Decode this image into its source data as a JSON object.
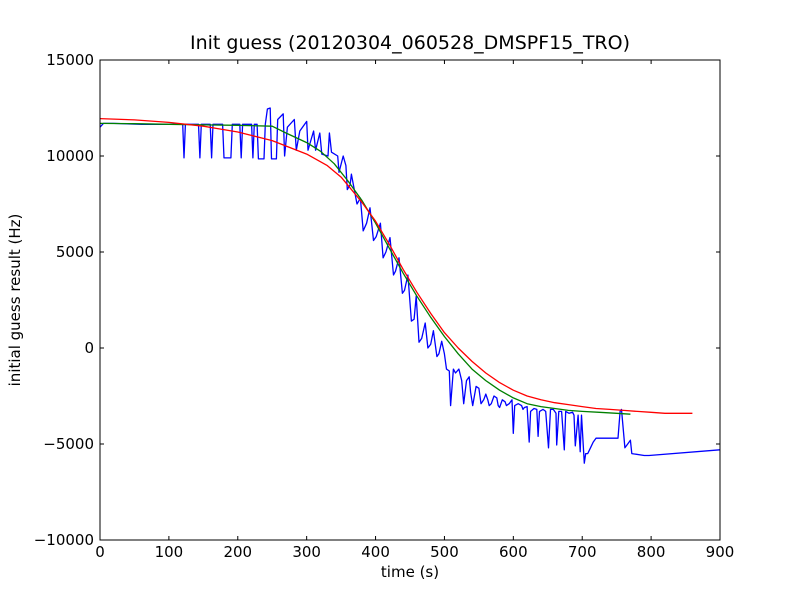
{
  "chart_data": {
    "type": "line",
    "title": "Init guess (20120304_060528_DMSPF15_TRO)",
    "xlabel": "time (s)",
    "ylabel": "initial guess result (Hz)",
    "xlim": [
      0,
      900
    ],
    "ylim": [
      -10000,
      15000
    ],
    "x_ticks": [
      0,
      100,
      200,
      300,
      400,
      500,
      600,
      700,
      800,
      900
    ],
    "y_ticks": [
      -10000,
      -5000,
      0,
      5000,
      10000,
      15000
    ],
    "grid": false,
    "legend": "none",
    "series": [
      {
        "color": "#0000ff",
        "points": [
          [
            0,
            11500
          ],
          [
            5,
            11700
          ],
          [
            20,
            11700
          ],
          [
            60,
            11650
          ],
          [
            100,
            11650
          ],
          [
            120,
            11650
          ],
          [
            122,
            9900
          ],
          [
            124,
            11650
          ],
          [
            143,
            11650
          ],
          [
            145,
            9900
          ],
          [
            147,
            11650
          ],
          [
            160,
            11650
          ],
          [
            162,
            9900
          ],
          [
            164,
            11650
          ],
          [
            178,
            11650
          ],
          [
            180,
            9900
          ],
          [
            190,
            9900
          ],
          [
            192,
            11650
          ],
          [
            203,
            11650
          ],
          [
            205,
            9900
          ],
          [
            207,
            11650
          ],
          [
            220,
            11650
          ],
          [
            222,
            9900
          ],
          [
            224,
            11650
          ],
          [
            228,
            11650
          ],
          [
            230,
            9850
          ],
          [
            238,
            9850
          ],
          [
            240,
            11650
          ],
          [
            243,
            12450
          ],
          [
            247,
            12500
          ],
          [
            249,
            9850
          ],
          [
            256,
            9850
          ],
          [
            258,
            11900
          ],
          [
            266,
            12200
          ],
          [
            268,
            10000
          ],
          [
            272,
            11500
          ],
          [
            282,
            11900
          ],
          [
            285,
            10300
          ],
          [
            290,
            11300
          ],
          [
            300,
            11800
          ],
          [
            302,
            10300
          ],
          [
            310,
            11300
          ],
          [
            313,
            10300
          ],
          [
            319,
            11200
          ],
          [
            322,
            10100
          ],
          [
            331,
            10000
          ],
          [
            333,
            11200
          ],
          [
            336,
            10200
          ],
          [
            345,
            10000
          ],
          [
            347,
            9150
          ],
          [
            353,
            10000
          ],
          [
            357,
            9500
          ],
          [
            359,
            8250
          ],
          [
            363,
            8500
          ],
          [
            365,
            9050
          ],
          [
            373,
            7500
          ],
          [
            378,
            7800
          ],
          [
            382,
            6100
          ],
          [
            387,
            6500
          ],
          [
            392,
            7300
          ],
          [
            397,
            5600
          ],
          [
            401,
            5800
          ],
          [
            407,
            6500
          ],
          [
            411,
            4700
          ],
          [
            415,
            5000
          ],
          [
            421,
            5750
          ],
          [
            426,
            3800
          ],
          [
            429,
            4000
          ],
          [
            434,
            4700
          ],
          [
            439,
            2850
          ],
          [
            442,
            3000
          ],
          [
            447,
            3800
          ],
          [
            452,
            1400
          ],
          [
            456,
            1500
          ],
          [
            459,
            2700
          ],
          [
            463,
            300
          ],
          [
            467,
            500
          ],
          [
            472,
            1300
          ],
          [
            476,
            0
          ],
          [
            480,
            200
          ],
          [
            484,
            900
          ],
          [
            489,
            -450
          ],
          [
            492,
            -300
          ],
          [
            496,
            350
          ],
          [
            500,
            -300
          ],
          [
            503,
            -1100
          ],
          [
            507,
            -1200
          ],
          [
            509,
            -3000
          ],
          [
            513,
            -1100
          ],
          [
            516,
            -1300
          ],
          [
            521,
            -1100
          ],
          [
            525,
            -1700
          ],
          [
            528,
            -2900
          ],
          [
            532,
            -1700
          ],
          [
            536,
            -1500
          ],
          [
            538,
            -2300
          ],
          [
            541,
            -3000
          ],
          [
            546,
            -2000
          ],
          [
            550,
            -2100
          ],
          [
            553,
            -2900
          ],
          [
            557,
            -2700
          ],
          [
            560,
            -2400
          ],
          [
            563,
            -2700
          ],
          [
            565,
            -3000
          ],
          [
            568,
            -2900
          ],
          [
            572,
            -2500
          ],
          [
            576,
            -2600
          ],
          [
            578,
            -3000
          ],
          [
            580,
            -3100
          ],
          [
            584,
            -2700
          ],
          [
            588,
            -2800
          ],
          [
            590,
            -3000
          ],
          [
            594,
            -2900
          ],
          [
            598,
            -2700
          ],
          [
            600,
            -4450
          ],
          [
            602,
            -3000
          ],
          [
            607,
            -2900
          ],
          [
            612,
            -3000
          ],
          [
            614,
            -3200
          ],
          [
            616,
            -3100
          ],
          [
            620,
            -3050
          ],
          [
            623,
            -4900
          ],
          [
            625,
            -3300
          ],
          [
            630,
            -3150
          ],
          [
            634,
            -3200
          ],
          [
            636,
            -4600
          ],
          [
            638,
            -3300
          ],
          [
            643,
            -3200
          ],
          [
            647,
            -3300
          ],
          [
            651,
            -5200
          ],
          [
            654,
            -3200
          ],
          [
            658,
            -3200
          ],
          [
            662,
            -3400
          ],
          [
            663,
            -5050
          ],
          [
            666,
            -3300
          ],
          [
            670,
            -3300
          ],
          [
            674,
            -5300
          ],
          [
            676,
            -3300
          ],
          [
            681,
            -3400
          ],
          [
            686,
            -3350
          ],
          [
            688,
            -3500
          ],
          [
            690,
            -5100
          ],
          [
            694,
            -3500
          ],
          [
            697,
            -5400
          ],
          [
            699,
            -3500
          ],
          [
            703,
            -6000
          ],
          [
            705,
            -5500
          ],
          [
            708,
            -5500
          ],
          [
            712,
            -5200
          ],
          [
            716,
            -4900
          ],
          [
            720,
            -4700
          ],
          [
            740,
            -4700
          ],
          [
            752,
            -4700
          ],
          [
            755,
            -3300
          ],
          [
            757,
            -3200
          ],
          [
            762,
            -5200
          ],
          [
            766,
            -5000
          ],
          [
            770,
            -4800
          ],
          [
            772,
            -5500
          ],
          [
            790,
            -5600
          ],
          [
            797,
            -5600
          ],
          [
            900,
            -5300
          ]
        ]
      },
      {
        "color": "#008000",
        "points": [
          [
            0,
            11700
          ],
          [
            50,
            11680
          ],
          [
            100,
            11650
          ],
          [
            150,
            11620
          ],
          [
            200,
            11600
          ],
          [
            250,
            11550
          ],
          [
            270,
            11200
          ],
          [
            300,
            10700
          ],
          [
            320,
            10250
          ],
          [
            340,
            9600
          ],
          [
            360,
            8700
          ],
          [
            380,
            7700
          ],
          [
            400,
            6500
          ],
          [
            420,
            5200
          ],
          [
            440,
            3900
          ],
          [
            460,
            2700
          ],
          [
            480,
            1600
          ],
          [
            500,
            600
          ],
          [
            520,
            -300
          ],
          [
            540,
            -1100
          ],
          [
            560,
            -1700
          ],
          [
            580,
            -2200
          ],
          [
            600,
            -2600
          ],
          [
            620,
            -2900
          ],
          [
            640,
            -3050
          ],
          [
            660,
            -3150
          ],
          [
            680,
            -3250
          ],
          [
            700,
            -3300
          ],
          [
            725,
            -3350
          ],
          [
            750,
            -3400
          ],
          [
            770,
            -3450
          ]
        ]
      },
      {
        "color": "#ff0000",
        "points": [
          [
            0,
            11950
          ],
          [
            50,
            11880
          ],
          [
            100,
            11750
          ],
          [
            150,
            11550
          ],
          [
            200,
            11250
          ],
          [
            250,
            10800
          ],
          [
            300,
            10100
          ],
          [
            330,
            9500
          ],
          [
            350,
            8900
          ],
          [
            380,
            7600
          ],
          [
            400,
            6600
          ],
          [
            420,
            5400
          ],
          [
            440,
            4100
          ],
          [
            460,
            2900
          ],
          [
            480,
            1800
          ],
          [
            500,
            800
          ],
          [
            520,
            0
          ],
          [
            540,
            -700
          ],
          [
            560,
            -1300
          ],
          [
            580,
            -1800
          ],
          [
            600,
            -2200
          ],
          [
            620,
            -2500
          ],
          [
            640,
            -2700
          ],
          [
            660,
            -2850
          ],
          [
            680,
            -2950
          ],
          [
            700,
            -3050
          ],
          [
            720,
            -3150
          ],
          [
            740,
            -3200
          ],
          [
            760,
            -3250
          ],
          [
            780,
            -3300
          ],
          [
            800,
            -3350
          ],
          [
            820,
            -3400
          ],
          [
            840,
            -3400
          ],
          [
            860,
            -3400
          ]
        ]
      }
    ]
  }
}
